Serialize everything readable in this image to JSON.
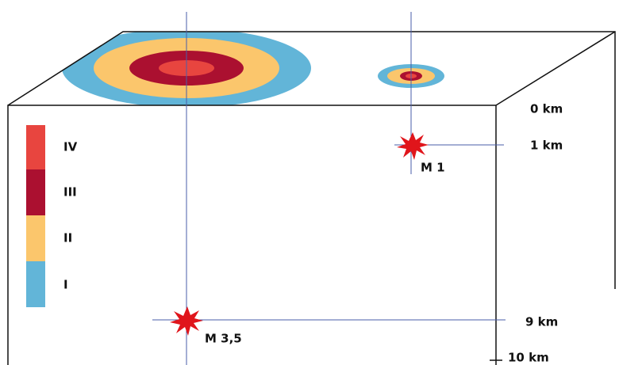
{
  "legend": {
    "items": [
      "IV",
      "III",
      "II",
      "I"
    ]
  },
  "depth_labels": [
    "0 km",
    "1 km",
    "9 km",
    "10 km"
  ],
  "events": [
    "M 1",
    "M 3,5"
  ]
}
